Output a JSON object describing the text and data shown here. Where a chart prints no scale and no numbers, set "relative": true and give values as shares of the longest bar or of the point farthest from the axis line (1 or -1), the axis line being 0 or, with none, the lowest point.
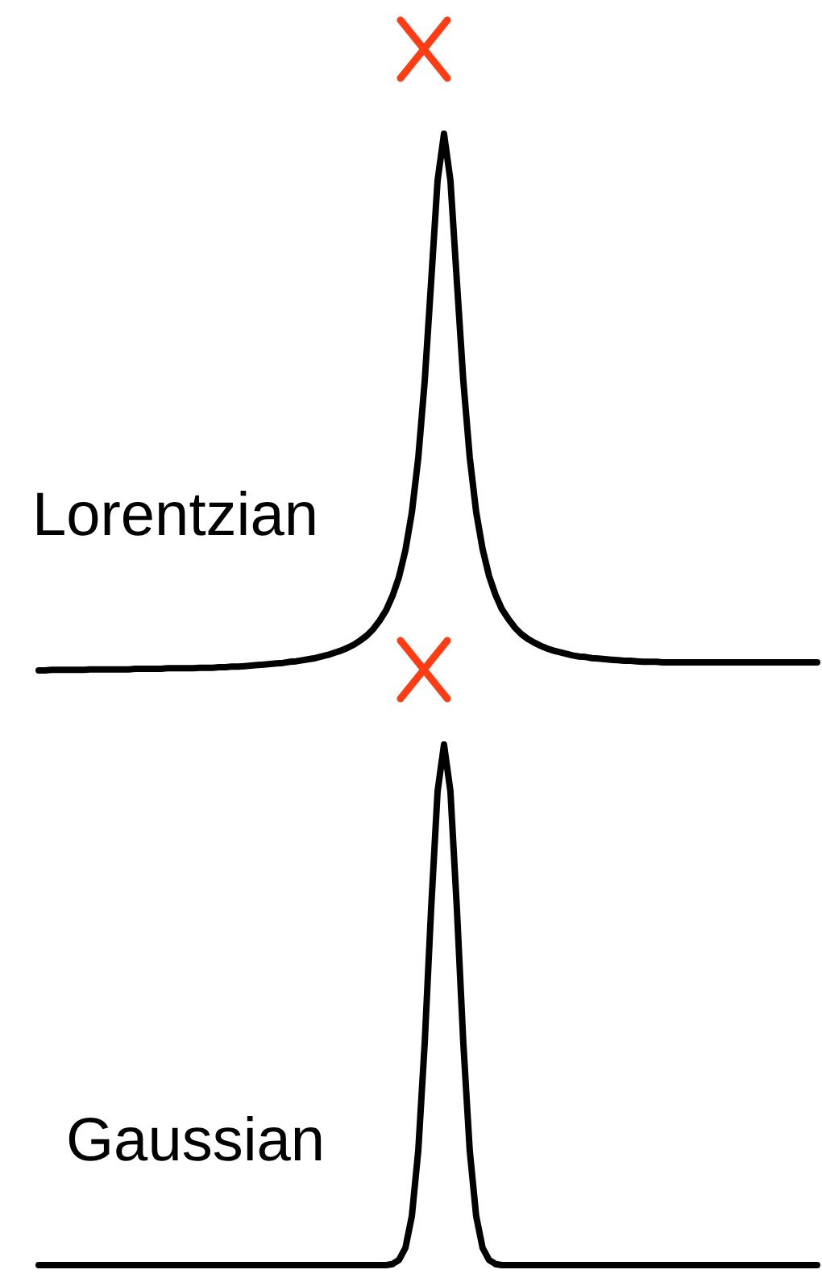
{
  "chart_data": [
    {
      "type": "line",
      "relative": true,
      "marker": "none",
      "line_style": "solid",
      "categories": [
        null,
        null,
        null,
        null,
        null,
        null,
        null,
        null,
        null,
        null,
        null,
        null,
        null,
        null,
        null,
        null,
        null,
        null,
        null,
        null,
        null,
        null,
        null,
        null,
        null,
        null,
        null,
        null,
        null,
        null,
        null,
        null,
        null,
        null,
        null,
        null,
        null,
        null,
        null,
        null,
        null,
        null,
        null,
        null,
        null,
        null,
        null,
        null,
        null,
        null,
        null,
        null,
        null,
        null,
        null,
        null,
        null,
        null,
        null,
        null,
        null,
        null,
        null,
        null,
        null,
        null,
        null,
        null,
        null,
        null,
        null,
        null,
        null,
        null,
        null,
        null,
        null,
        null,
        null,
        null,
        null,
        null,
        null,
        null,
        null,
        null,
        null,
        null,
        null,
        null,
        null,
        null,
        null,
        null,
        null,
        null,
        null,
        null,
        null,
        null,
        null,
        null,
        null,
        null,
        null,
        null,
        null,
        null,
        null,
        null,
        null,
        null,
        null,
        null,
        null,
        null,
        null,
        null,
        null,
        null,
        null,
        null
      ],
      "series": [
        {
          "name": "Lorentzian",
          "color": "#000000",
          "values": [
            0,
            0,
            0.001,
            0.001,
            0.001,
            0.001,
            0.001,
            0.001,
            0.002,
            0.002,
            0.002,
            0.002,
            0.002,
            0.002,
            0.002,
            0.003,
            0.003,
            0.003,
            0.003,
            0.003,
            0.004,
            0.004,
            0.004,
            0.004,
            0.004,
            0.005,
            0.005,
            0.005,
            0.006,
            0.006,
            0.007,
            0.007,
            0.008,
            0.009,
            0.01,
            0.011,
            0.012,
            0.013,
            0.014,
            0.016,
            0.017,
            0.019,
            0.021,
            0.023,
            0.026,
            0.029,
            0.033,
            0.037,
            0.042,
            0.048,
            0.056,
            0.065,
            0.077,
            0.093,
            0.112,
            0.139,
            0.174,
            0.224,
            0.294,
            0.396,
            0.539,
            0.724,
            0.913,
            1,
            0.913,
            0.725,
            0.54,
            0.397,
            0.295,
            0.226,
            0.176,
            0.141,
            0.114,
            0.096,
            0.08,
            0.068,
            0.059,
            0.052,
            0.046,
            0.041,
            0.037,
            0.034,
            0.031,
            0.028,
            0.026,
            0.025,
            0.023,
            0.022,
            0.021,
            0.02,
            0.019,
            0.018,
            0.018,
            0.017,
            0.016,
            0.016,
            0.016,
            0.015,
            0.015,
            0.015,
            0.015,
            0.015,
            0.015,
            0.015,
            0.015,
            0.015,
            0.015,
            0.015,
            0.015,
            0.015,
            0.015,
            0.015,
            0.015,
            0.015,
            0.015,
            0.015,
            0.015,
            0.015,
            0.015,
            0.015,
            0.015,
            0.015
          ]
        }
      ]
    },
    {
      "type": "line",
      "relative": true,
      "marker": "none",
      "line_style": "solid",
      "categories": [
        null,
        null,
        null,
        null,
        null,
        null,
        null,
        null,
        null,
        null,
        null,
        null,
        null,
        null,
        null,
        null,
        null,
        null,
        null,
        null,
        null,
        null,
        null,
        null,
        null,
        null,
        null,
        null,
        null,
        null,
        null,
        null,
        null,
        null,
        null,
        null,
        null,
        null,
        null,
        null,
        null,
        null,
        null,
        null,
        null,
        null,
        null,
        null,
        null,
        null,
        null,
        null,
        null,
        null,
        null,
        null,
        null,
        null,
        null,
        null,
        null,
        null,
        null,
        null,
        null,
        null,
        null,
        null,
        null,
        null,
        null,
        null,
        null,
        null,
        null,
        null,
        null,
        null,
        null,
        null,
        null,
        null,
        null,
        null,
        null,
        null,
        null,
        null,
        null,
        null,
        null,
        null,
        null,
        null,
        null,
        null,
        null,
        null,
        null,
        null,
        null,
        null,
        null,
        null,
        null,
        null,
        null,
        null,
        null,
        null,
        null,
        null,
        null,
        null,
        null,
        null,
        null,
        null,
        null,
        null,
        null,
        null
      ],
      "series": [
        {
          "name": "Gaussian",
          "color": "#000000",
          "values": [
            0,
            0,
            0,
            0,
            0,
            0,
            0,
            0,
            0,
            0,
            0,
            0,
            0,
            0,
            0,
            0,
            0,
            0,
            0,
            0,
            0,
            0,
            0,
            0,
            0,
            0,
            0,
            0,
            0,
            0,
            0,
            0,
            0,
            0,
            0,
            0,
            0,
            0,
            0,
            0,
            0,
            0,
            0,
            0,
            0,
            0,
            0,
            0,
            0,
            0,
            0,
            0,
            0,
            0,
            0,
            0.002,
            0.01,
            0.033,
            0.094,
            0.22,
            0.427,
            0.685,
            0.91,
            1,
            0.91,
            0.685,
            0.427,
            0.22,
            0.094,
            0.033,
            0.01,
            0.002,
            0,
            0,
            0,
            0,
            0,
            0,
            0,
            0,
            0,
            0,
            0,
            0,
            0,
            0,
            0,
            0,
            0,
            0,
            0,
            0,
            0,
            0,
            0,
            0,
            0,
            0,
            0,
            0,
            0,
            0,
            0,
            0,
            0,
            0,
            0,
            0,
            0,
            0,
            0,
            0,
            0,
            0,
            0,
            0,
            0,
            0,
            0,
            0,
            0,
            0
          ]
        }
      ]
    }
  ]
}
